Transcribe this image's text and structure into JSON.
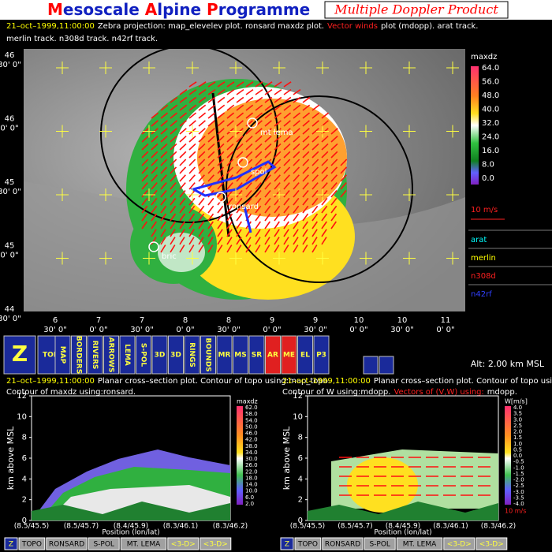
{
  "header": {
    "title": [
      "M",
      "esoscale ",
      "A",
      "lpine ",
      "P",
      "rogramme"
    ],
    "product": "Multiple Doppler Product"
  },
  "info": {
    "line1": [
      {
        "text": "21–oct–1999,11:00:00",
        "color": "#ffff00"
      },
      {
        "text": "Zebra projection: map_elevelev plot.  ronsard maxdz plot.",
        "color": "#ffffff"
      },
      {
        "text": "Vector winds",
        "color": "#ff2020"
      },
      {
        "text": "plot (mdopp). arat track.",
        "color": "#ffffff"
      }
    ],
    "line2": "merlin track.   n308d track.   n42rf track."
  },
  "map": {
    "lat_labels": [
      {
        "deg": "46",
        "min": "30' 0\""
      },
      {
        "deg": "46",
        "min": "0' 0\""
      },
      {
        "deg": "45",
        "min": "30' 0\""
      },
      {
        "deg": "45",
        "min": "0' 0\""
      },
      {
        "deg": "44",
        "min": "30' 0\""
      }
    ],
    "lon_labels": [
      {
        "deg": "6",
        "min": "30' 0\""
      },
      {
        "deg": "7",
        "min": "0' 0\""
      },
      {
        "deg": "7",
        "min": "30' 0\""
      },
      {
        "deg": "8",
        "min": "0' 0\""
      },
      {
        "deg": "8",
        "min": "30' 0\""
      },
      {
        "deg": "9",
        "min": "0' 0\""
      },
      {
        "deg": "9",
        "min": "30' 0\""
      },
      {
        "deg": "10",
        "min": "0' 0\""
      },
      {
        "deg": "10",
        "min": "30' 0\""
      },
      {
        "deg": "11",
        "min": "0' 0\""
      }
    ],
    "sites": [
      "mt lema",
      "spol",
      "ronsard",
      "bric"
    ],
    "colorbar_title": "maxdz",
    "colorbar_labels": [
      "64.0",
      "56.0",
      "48.0",
      "40.0",
      "32.0",
      "24.0",
      "16.0",
      "8.0",
      "0.0"
    ],
    "wind_scale": "10 m/s",
    "tracks": [
      {
        "name": "arat",
        "color": "#00ffff"
      },
      {
        "name": "merlin",
        "color": "#ffff00"
      },
      {
        "name": "n308d",
        "color": "#ff2020"
      },
      {
        "name": "n42rf",
        "color": "#3040ff"
      }
    ]
  },
  "toolbar": {
    "buttons": [
      "Z",
      "TOPO",
      "MAP",
      "BORDERS",
      "RIVERS",
      "ARROWS",
      "LEMA",
      "S-POL",
      "3D",
      "3D",
      "RINGS",
      "BOUNDS",
      "MR",
      "MS",
      "SR",
      "AR",
      "ME",
      "EL",
      "P3"
    ],
    "altitude": "Alt: 2.00 km MSL"
  },
  "panels": [
    {
      "line1": [
        {
          "text": "21–oct–1999,11:00:00",
          "color": "#ffff00"
        },
        {
          "text": "Planar cross–section plot. Contour of topo using:map_topo.",
          "color": "#ffffff"
        }
      ],
      "line2": [
        {
          "text": "Contour of maxdz using:ronsard.",
          "color": "#ffffff"
        }
      ],
      "yticks": [
        "0",
        "2",
        "4",
        "6",
        "8",
        "10",
        "12"
      ],
      "ylabel": "km above MSL",
      "xticks": [
        "(8.5/45.5)",
        "(8.5/45.7)",
        "(8.4/45.9)",
        "(8.3/46.1)",
        "(8.3/46.2)"
      ],
      "xlabel": "Position (lon/lat)",
      "colorbar_title": "maxdz",
      "colorbar_labels": [
        "62.0",
        "58.0",
        "54.0",
        "50.0",
        "46.0",
        "42.0",
        "38.0",
        "34.0",
        "30.0",
        "26.0",
        "22.0",
        "18.0",
        "14.0",
        "10.0",
        "6.0",
        "2.0"
      ],
      "buttons": [
        "Z",
        "TOPO",
        "RONSARD",
        "S-POL",
        "MT. LEMA",
        "<3-D>",
        "<3-D>"
      ]
    },
    {
      "line1": [
        {
          "text": "21–oct–1999,11:00:00",
          "color": "#ffff00"
        },
        {
          "text": "Planar cross–section plot. Contour of topo using:map_topo.",
          "color": "#ffffff"
        }
      ],
      "line2": [
        {
          "text": "Contour of W using:mdopp.",
          "color": "#ffffff"
        },
        {
          "text": "Vectors of (V,W) using:",
          "color": "#ff2020"
        },
        {
          "text": "mdopp.",
          "color": "#ffffff"
        }
      ],
      "yticks": [
        "0",
        "2",
        "4",
        "6",
        "8",
        "10",
        "12"
      ],
      "ylabel": "km above MSL",
      "xticks": [
        "(8.5/45.5)",
        "(8.5/45.7)",
        "(8.4/45.9)",
        "(8.3/46.1)",
        "(8.3/46.2)"
      ],
      "xlabel": "Position (lon/lat)",
      "colorbar_title": "W[m/s]",
      "colorbar_labels": [
        "4.0",
        "3.5",
        "3.0",
        "2.5",
        "2.0",
        "1.5",
        "1.0",
        "0.5",
        "0.0",
        "-0.5",
        "-1.0",
        "-1.5",
        "-2.0",
        "-2.5",
        "-3.0",
        "-3.5",
        "-4.0"
      ],
      "wind_scale": "10 m/s",
      "buttons": [
        "Z",
        "TOPO",
        "RONSARD",
        "S-POL",
        "MT. LEMA",
        "<3-D>",
        "<3-D>"
      ]
    }
  ]
}
